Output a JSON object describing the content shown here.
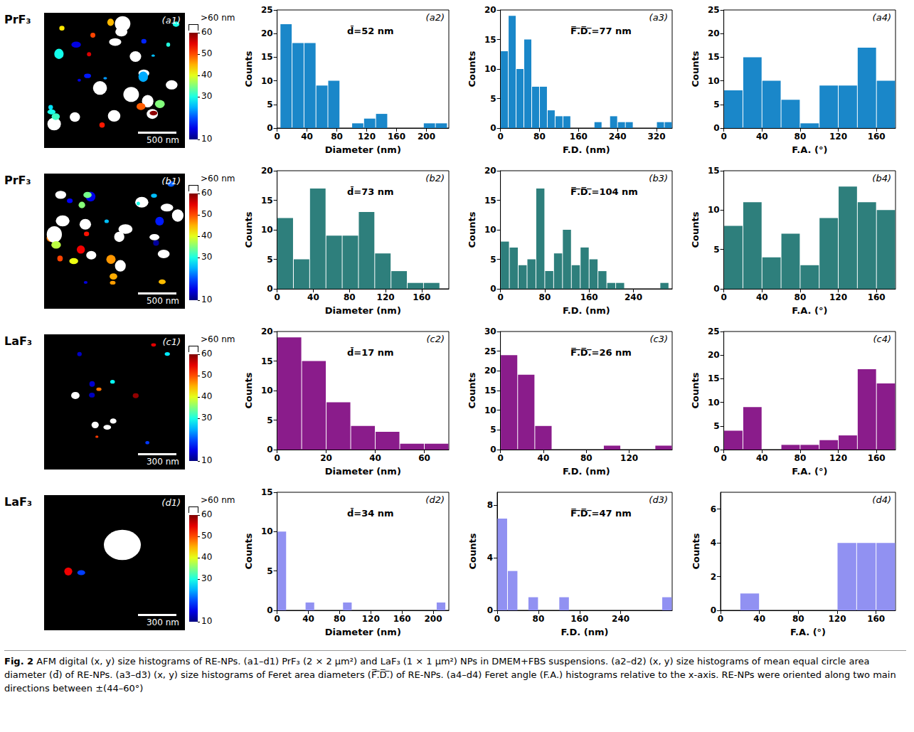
{
  "caption": {
    "label": "Fig. 2",
    "text": "AFM digital (x, y) size histograms of RE-NPs. (a1–d1) PrF₃ (2 × 2 μm²) and LaF₃ (1 × 1 μm²) NPs in DMEM+FBS suspensions. (a2–d2) (x, y) size histograms of mean equal circle area diameter (d̄) of RE-NPs. (a3–d3) (x, y) size histograms of Feret area diameters (F̅.̅D̅.̅) of RE-NPs. (a4–d4) Feret angle (F.A.) histograms relative to the x-axis. RE-NPs were oriented along two main directions between ±(44–60°)"
  },
  "rows": [
    {
      "material": "PrF₃",
      "image": {
        "label": "(a1)",
        "scale_bar": "500 nm",
        "colorbar": {
          "range": [
            10,
            60
          ],
          "ticks": [
            60,
            50,
            40,
            30,
            10
          ],
          "over_label": ">60 nm"
        }
      }
    },
    {
      "material": "PrF₃",
      "image": {
        "label": "(b1)",
        "scale_bar": "500 nm",
        "colorbar": {
          "range": [
            10,
            60
          ],
          "ticks": [
            60,
            50,
            40,
            30,
            10
          ],
          "over_label": ">60 nm"
        }
      }
    },
    {
      "material": "LaF₃",
      "image": {
        "label": "(c1)",
        "scale_bar": "300 nm",
        "colorbar": {
          "range": [
            10,
            60
          ],
          "ticks": [
            60,
            50,
            40,
            30,
            10
          ],
          "over_label": ">60 nm"
        }
      }
    },
    {
      "material": "LaF₃",
      "image": {
        "label": "(d1)",
        "scale_bar": "300 nm",
        "colorbar": {
          "range": [
            10,
            60
          ],
          "ticks": [
            60,
            50,
            40,
            30,
            10
          ],
          "over_label": ">60 nm"
        }
      }
    }
  ],
  "chart_data": [
    {
      "type": "histogram",
      "panel": "(a2)",
      "annotation": "d̄=52 nm",
      "xlabel": "Diameter (nm)",
      "ylabel": "Counts",
      "color": "#1a87c9",
      "bins": [
        4,
        20,
        36,
        52,
        68,
        84,
        100,
        116,
        132,
        148,
        164,
        180,
        196,
        212,
        228
      ],
      "values": [
        22,
        18,
        18,
        9,
        10,
        0,
        1,
        2,
        3,
        0,
        0,
        0,
        1,
        1
      ],
      "xlim": [
        0,
        230
      ],
      "xticks": [
        0,
        40,
        80,
        120,
        160,
        200
      ],
      "ylim": [
        0,
        25
      ],
      "yticks": [
        0,
        5,
        10,
        15,
        20,
        25
      ]
    },
    {
      "type": "histogram",
      "panel": "(a3)",
      "annotation": "F̅.̅D̅.̅=77 nm",
      "xlabel": "F.D. (nm)",
      "ylabel": "Counts",
      "color": "#1a87c9",
      "bins": [
        0,
        16,
        32,
        48,
        64,
        80,
        96,
        112,
        128,
        144,
        160,
        176,
        192,
        208,
        224,
        240,
        256,
        272,
        288,
        304,
        320,
        336,
        352
      ],
      "values": [
        13,
        19,
        10,
        15,
        7,
        7,
        3,
        2,
        2,
        0,
        0,
        0,
        1,
        0,
        2,
        1,
        1,
        0,
        0,
        0,
        1,
        1
      ],
      "xlim": [
        0,
        352
      ],
      "xticks": [
        0,
        80,
        160,
        240,
        320
      ],
      "ylim": [
        0,
        20
      ],
      "yticks": [
        0,
        5,
        10,
        15,
        20
      ]
    },
    {
      "type": "histogram",
      "panel": "(a4)",
      "xlabel": "F.A. (°)",
      "ylabel": "Counts",
      "color": "#1a87c9",
      "bins": [
        0,
        20,
        40,
        60,
        80,
        100,
        120,
        140,
        160,
        180
      ],
      "values": [
        8,
        15,
        10,
        6,
        1,
        9,
        9,
        17,
        10
      ],
      "xlim": [
        0,
        180
      ],
      "xticks": [
        0,
        40,
        80,
        120,
        160
      ],
      "ylim": [
        0,
        25
      ],
      "yticks": [
        0,
        5,
        10,
        15,
        20,
        25
      ]
    },
    {
      "type": "histogram",
      "panel": "(b2)",
      "annotation": "d̄=73 nm",
      "xlabel": "Diameter (nm)",
      "ylabel": "Counts",
      "color": "#2e7f7c",
      "bins": [
        0,
        18,
        36,
        54,
        72,
        90,
        108,
        126,
        144,
        162,
        180
      ],
      "values": [
        12,
        5,
        17,
        9,
        9,
        13,
        6,
        3,
        1,
        1
      ],
      "xlim": [
        0,
        190
      ],
      "xticks": [
        0,
        40,
        80,
        120,
        160
      ],
      "ylim": [
        0,
        20
      ],
      "yticks": [
        0,
        5,
        10,
        15,
        20
      ]
    },
    {
      "type": "histogram",
      "panel": "(b3)",
      "annotation": "F̅.̅D̅.̅=104 nm",
      "xlabel": "F.D. (nm)",
      "ylabel": "Counts",
      "color": "#2e7f7c",
      "bins": [
        0,
        16,
        32,
        48,
        64,
        80,
        96,
        112,
        128,
        144,
        160,
        176,
        192,
        208,
        224,
        240,
        256,
        272,
        288,
        304
      ],
      "values": [
        8,
        7,
        4,
        5,
        17,
        3,
        6,
        10,
        4,
        7,
        5,
        3,
        1,
        1,
        0,
        0,
        0,
        0,
        1
      ],
      "xlim": [
        0,
        310
      ],
      "xticks": [
        0,
        80,
        160,
        240
      ],
      "ylim": [
        0,
        20
      ],
      "yticks": [
        0,
        5,
        10,
        15,
        20
      ]
    },
    {
      "type": "histogram",
      "panel": "(b4)",
      "xlabel": "F.A. (°)",
      "ylabel": "Counts",
      "color": "#2e7f7c",
      "bins": [
        0,
        20,
        40,
        60,
        80,
        100,
        120,
        140,
        160,
        180
      ],
      "values": [
        8,
        11,
        4,
        7,
        3,
        9,
        13,
        11,
        10
      ],
      "xlim": [
        0,
        180
      ],
      "xticks": [
        0,
        40,
        80,
        120,
        160
      ],
      "ylim": [
        0,
        15
      ],
      "yticks": [
        0,
        5,
        10,
        15
      ]
    },
    {
      "type": "histogram",
      "panel": "(c2)",
      "annotation": "d̄=17 nm",
      "xlabel": "Diameter (nm)",
      "ylabel": "Counts",
      "color": "#8a1c8b",
      "bins": [
        0,
        10,
        20,
        30,
        40,
        50,
        60,
        70
      ],
      "values": [
        19,
        15,
        8,
        4,
        3,
        1,
        1
      ],
      "xlim": [
        0,
        70
      ],
      "xticks": [
        0,
        20,
        40,
        60
      ],
      "ylim": [
        0,
        20
      ],
      "yticks": [
        0,
        5,
        10,
        15,
        20
      ]
    },
    {
      "type": "histogram",
      "panel": "(c3)",
      "annotation": "F̅.̅D̅.̅=26 nm",
      "xlabel": "F.D. (nm)",
      "ylabel": "Counts",
      "color": "#8a1c8b",
      "bins": [
        0,
        16,
        32,
        48,
        64,
        80,
        96,
        112,
        128,
        144,
        160
      ],
      "values": [
        24,
        19,
        6,
        0,
        0,
        0,
        1,
        0,
        0,
        1
      ],
      "xlim": [
        0,
        160
      ],
      "xticks": [
        0,
        40,
        80,
        120
      ],
      "ylim": [
        0,
        30
      ],
      "yticks": [
        0,
        5,
        10,
        15,
        20,
        25,
        30
      ]
    },
    {
      "type": "histogram",
      "panel": "(c4)",
      "xlabel": "F.A. (°)",
      "ylabel": "Counts",
      "color": "#8a1c8b",
      "bins": [
        0,
        20,
        40,
        60,
        80,
        100,
        120,
        140,
        160,
        180
      ],
      "values": [
        4,
        9,
        0,
        1,
        1,
        2,
        3,
        17,
        14
      ],
      "xlim": [
        0,
        180
      ],
      "xticks": [
        0,
        40,
        80,
        120,
        160
      ],
      "ylim": [
        0,
        25
      ],
      "yticks": [
        0,
        5,
        10,
        15,
        20,
        25
      ]
    },
    {
      "type": "histogram",
      "panel": "(d2)",
      "annotation": "d̄=34 nm",
      "xlabel": "Diameter (nm)",
      "ylabel": "Counts",
      "color": "#9191f2",
      "bins": [
        0,
        12,
        24,
        36,
        48,
        60,
        72,
        84,
        96,
        108,
        120,
        132,
        144,
        156,
        168,
        180,
        192,
        204,
        216
      ],
      "values": [
        10,
        0,
        0,
        1,
        0,
        0,
        0,
        1,
        0,
        0,
        0,
        0,
        0,
        0,
        0,
        0,
        0,
        1
      ],
      "xlim": [
        0,
        220
      ],
      "xticks": [
        0,
        40,
        80,
        120,
        160,
        200
      ],
      "ylim": [
        0,
        15
      ],
      "yticks": [
        0,
        5,
        10,
        15
      ]
    },
    {
      "type": "histogram",
      "panel": "(d3)",
      "annotation": "F̅.̅D̅.̅=47 nm",
      "xlabel": "F.D. (nm)",
      "ylabel": "Counts",
      "color": "#9191f2",
      "bins": [
        0,
        20,
        40,
        60,
        80,
        100,
        120,
        140,
        160,
        180,
        200,
        220,
        240,
        260,
        280,
        300,
        320,
        340
      ],
      "values": [
        7,
        3,
        0,
        1,
        0,
        0,
        1,
        0,
        0,
        0,
        0,
        0,
        0,
        0,
        0,
        0,
        1
      ],
      "xlim": [
        0,
        340
      ],
      "xticks": [
        0,
        80,
        160,
        240
      ],
      "ylim": [
        0,
        9
      ],
      "yticks": [
        0,
        4,
        8
      ]
    },
    {
      "type": "histogram",
      "panel": "(d4)",
      "xlabel": "F.A. (°)",
      "ylabel": "Counts",
      "color": "#9191f2",
      "bins": [
        0,
        20,
        40,
        60,
        80,
        100,
        120,
        140,
        160,
        180
      ],
      "values": [
        0,
        1,
        0,
        0,
        0,
        0,
        4,
        4,
        4
      ],
      "xlim": [
        0,
        180
      ],
      "xticks": [
        0,
        40,
        80,
        120,
        160
      ],
      "ylim": [
        0,
        7
      ],
      "yticks": [
        0,
        2,
        4,
        6
      ]
    }
  ]
}
